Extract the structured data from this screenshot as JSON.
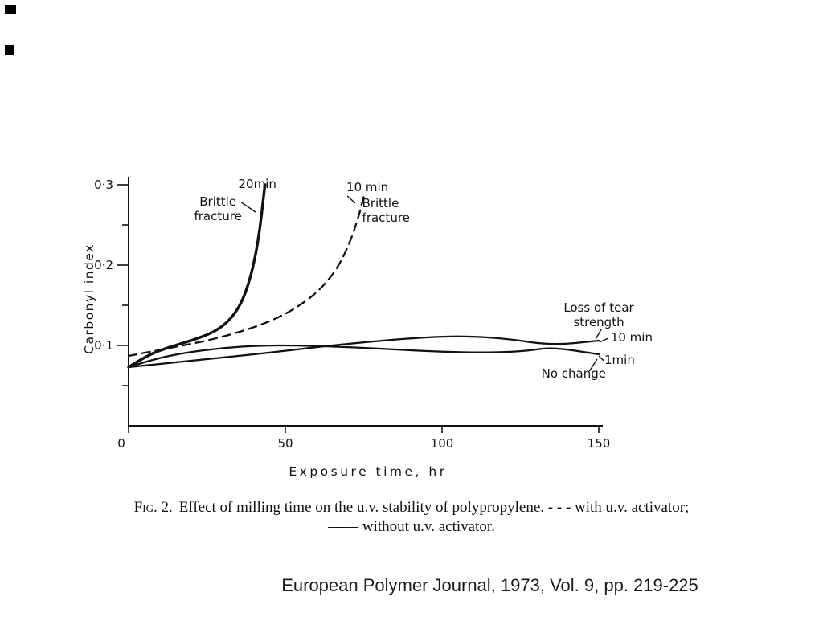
{
  "page": {
    "citation": "European Polymer Journal, 1973, Vol. 9, pp. 219-225"
  },
  "caption": {
    "fig_label": "Fig. 2.",
    "line1": "Effect of milling time on the u.v. stability of polypropylene. - - - with u.v. activator;",
    "line2": "—— without u.v. activator."
  },
  "chart_data": {
    "type": "line",
    "title": "",
    "xlabel": "Exposure time,  hr",
    "ylabel": "Carbonyl index",
    "xlim": [
      0,
      150
    ],
    "ylim": [
      0,
      0.3
    ],
    "grid": false,
    "x_ticks": [
      {
        "v": 0,
        "label": "0"
      },
      {
        "v": 50,
        "label": "50"
      },
      {
        "v": 100,
        "label": "100"
      },
      {
        "v": 150,
        "label": "150"
      }
    ],
    "y_ticks": [
      {
        "v": 0.1,
        "label": "0·1"
      },
      {
        "v": 0.2,
        "label": "0·2"
      },
      {
        "v": 0.3,
        "label": "0·3"
      }
    ],
    "y_minor_ticks": [
      0.05,
      0.15,
      0.25
    ],
    "series": [
      {
        "name": "20 min milling, without u.v. activator (brittle fracture)",
        "style": "solid",
        "width": 3.4,
        "points": [
          [
            0,
            0.073
          ],
          [
            6,
            0.088
          ],
          [
            13,
            0.098
          ],
          [
            20,
            0.106
          ],
          [
            27,
            0.116
          ],
          [
            32,
            0.13
          ],
          [
            36,
            0.152
          ],
          [
            39,
            0.185
          ],
          [
            41.5,
            0.232
          ],
          [
            43.5,
            0.3
          ]
        ]
      },
      {
        "name": "10 min milling, with u.v. activator (brittle fracture)",
        "style": "dashed",
        "width": 2.3,
        "points": [
          [
            0,
            0.087
          ],
          [
            12,
            0.096
          ],
          [
            24,
            0.105
          ],
          [
            34,
            0.115
          ],
          [
            44,
            0.128
          ],
          [
            52,
            0.143
          ],
          [
            60,
            0.165
          ],
          [
            66,
            0.192
          ],
          [
            70,
            0.222
          ],
          [
            73,
            0.255
          ],
          [
            75,
            0.285
          ]
        ]
      },
      {
        "name": "10 min milling, without u.v. activator (loss of tear strength)",
        "style": "solid",
        "width": 2.3,
        "points": [
          [
            0,
            0.073
          ],
          [
            15,
            0.079
          ],
          [
            30,
            0.085
          ],
          [
            45,
            0.091
          ],
          [
            60,
            0.098
          ],
          [
            75,
            0.104
          ],
          [
            90,
            0.109
          ],
          [
            105,
            0.112
          ],
          [
            120,
            0.109
          ],
          [
            135,
            0.1
          ],
          [
            150,
            0.106
          ]
        ]
      },
      {
        "name": "1 min milling (no change)",
        "style": "solid",
        "width": 2.3,
        "points": [
          [
            0,
            0.073
          ],
          [
            8,
            0.083
          ],
          [
            18,
            0.091
          ],
          [
            30,
            0.097
          ],
          [
            42,
            0.1
          ],
          [
            55,
            0.1
          ],
          [
            70,
            0.098
          ],
          [
            85,
            0.095
          ],
          [
            100,
            0.092
          ],
          [
            115,
            0.091
          ],
          [
            127,
            0.093
          ],
          [
            135,
            0.098
          ],
          [
            150,
            0.089
          ]
        ]
      }
    ],
    "annotations": [
      {
        "id": "label-20min",
        "lines": [
          "20min"
        ],
        "x": 35,
        "y": 0.296,
        "anchor": "start"
      },
      {
        "id": "label-brittle-fracture-left",
        "lines": [
          "Brittle",
          "fracture"
        ],
        "x": 28.5,
        "y": 0.274,
        "anchor": "middle"
      },
      {
        "id": "label-10min-dashed",
        "lines": [
          "10 min"
        ],
        "x": 69.5,
        "y": 0.292,
        "anchor": "start"
      },
      {
        "id": "label-brittle-fracture-right",
        "lines": [
          "Brittle",
          "fracture"
        ],
        "x": 74.5,
        "y": 0.272,
        "anchor": "start"
      },
      {
        "id": "label-loss-of-tear-strength",
        "lines": [
          "Loss of tear",
          "strength"
        ],
        "x": 150,
        "y": 0.142,
        "anchor": "middle"
      },
      {
        "id": "label-10min-right",
        "lines": [
          "10 min"
        ],
        "x": 153.8,
        "y": 0.105,
        "anchor": "start"
      },
      {
        "id": "label-1min",
        "lines": [
          "1min"
        ],
        "x": 151.8,
        "y": 0.077,
        "anchor": "start"
      },
      {
        "id": "label-no-change",
        "lines": [
          "No change"
        ],
        "x": 142,
        "y": 0.06,
        "anchor": "middle"
      }
    ],
    "leader_lines": [
      [
        36.0,
        0.278,
        40.5,
        0.266
      ],
      [
        69.8,
        0.286,
        72.3,
        0.277
      ],
      [
        150.8,
        0.12,
        149.0,
        0.108
      ],
      [
        150.2,
        0.104,
        153.0,
        0.109
      ],
      [
        150.0,
        0.087,
        151.6,
        0.081
      ],
      [
        147.0,
        0.068,
        149.5,
        0.083
      ]
    ],
    "legend_note_dashed": "with u.v. activator",
    "legend_note_solid": "without u.v. activator"
  }
}
